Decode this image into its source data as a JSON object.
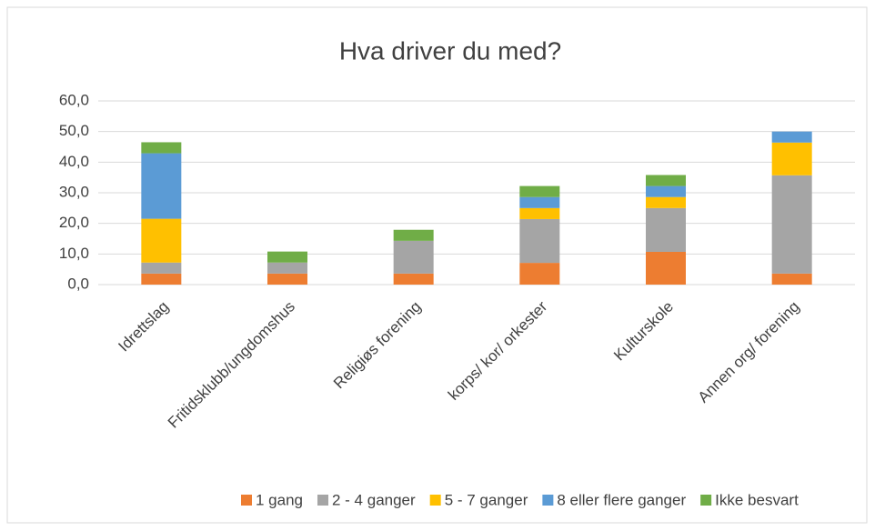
{
  "chart_data": {
    "type": "stacked_bar",
    "title": "Hva driver du med?",
    "categories": [
      "Idrettslag",
      "Fritidsklubb/ungdomshus",
      "Religiøs forening",
      "korps/ kor/ orkester",
      "Kulturskole",
      "Annen org/ forening"
    ],
    "series": [
      {
        "name": "1 gang",
        "color": "#ed7d31",
        "values": [
          3.6,
          3.6,
          3.6,
          7.1,
          10.7,
          3.6
        ]
      },
      {
        "name": "2 - 4 ganger",
        "color": "#a5a5a5",
        "values": [
          3.6,
          3.6,
          10.7,
          14.3,
          14.3,
          32.1
        ]
      },
      {
        "name": "5 - 7 ganger",
        "color": "#ffc000",
        "values": [
          14.3,
          0,
          0,
          3.6,
          3.6,
          10.7
        ]
      },
      {
        "name": "8 eller flere ganger",
        "color": "#5b9bd5",
        "values": [
          21.4,
          0,
          0,
          3.6,
          3.6,
          3.6
        ]
      },
      {
        "name": "Ikke besvart",
        "color": "#70ad47",
        "values": [
          3.6,
          3.6,
          3.6,
          3.6,
          3.6,
          0
        ]
      }
    ],
    "ylim": [
      0,
      60
    ],
    "yticks": [
      {
        "value": 0,
        "label": "0,0"
      },
      {
        "value": 10,
        "label": "10,0"
      },
      {
        "value": 20,
        "label": "20,0"
      },
      {
        "value": 30,
        "label": "30,0"
      },
      {
        "value": 40,
        "label": "40,0"
      },
      {
        "value": 50,
        "label": "50,0"
      },
      {
        "value": 60,
        "label": "60,0"
      }
    ],
    "grid": true,
    "legend": "bottom"
  }
}
